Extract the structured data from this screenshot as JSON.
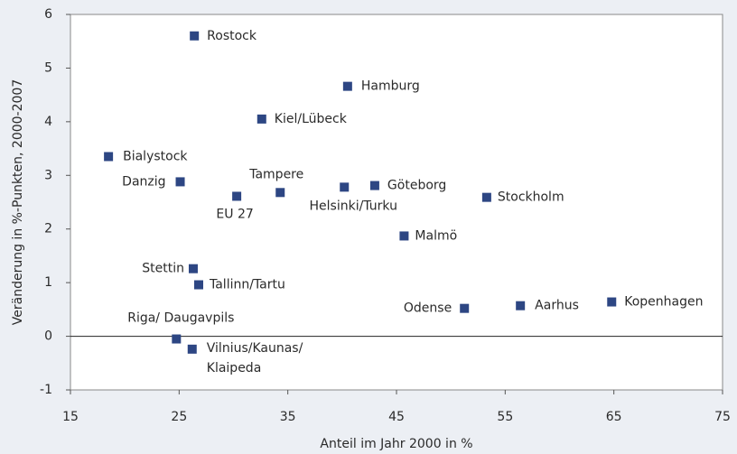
{
  "chart_data": {
    "type": "scatter",
    "xlabel": "Anteil im Jahr 2000 in %",
    "ylabel": "Veränderung in %-Punkten, 2000-2007",
    "labels": [
      "Rostock",
      "Hamburg",
      "Kiel/Lübeck",
      "Bialystock",
      "Danzig",
      "EU 27",
      "Tampere",
      "Helsinki/Turku",
      "Göteborg",
      "Stockholm",
      "Malmö",
      "Stettin",
      "Tallinn/Tartu",
      "Odense",
      "Aarhus",
      "Kopenhagen",
      "Riga/ Daugavpils",
      [
        "Vilnius/Kaunas/",
        "Klaipeda"
      ]
    ],
    "x": [
      26.4,
      40.5,
      32.6,
      18.5,
      25.1,
      30.3,
      34.3,
      40.2,
      43.0,
      53.3,
      45.7,
      26.3,
      26.8,
      51.25,
      56.4,
      64.8,
      24.75,
      26.2
    ],
    "y": [
      5.6,
      4.66,
      4.05,
      3.35,
      2.88,
      2.61,
      2.68,
      2.78,
      2.81,
      2.59,
      1.87,
      1.26,
      0.96,
      0.52,
      0.57,
      0.64,
      -0.05,
      -0.24
    ],
    "color": "#2d4683",
    "xlim": [
      15,
      75
    ],
    "xticks": [
      15,
      25,
      35,
      45,
      55,
      65,
      75
    ],
    "ylim": [
      -1,
      6
    ],
    "yticks": [
      -1,
      0,
      1,
      2,
      3,
      4,
      5,
      6
    ]
  }
}
